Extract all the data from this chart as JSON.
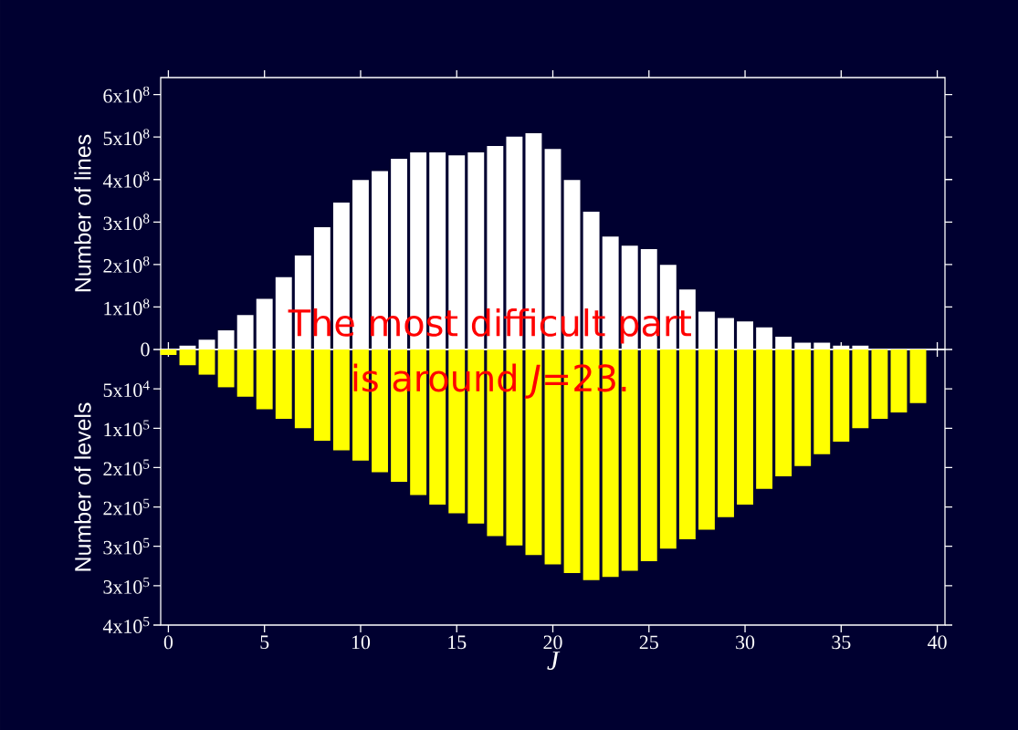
{
  "chart_data": [
    {
      "type": "bar",
      "ylabel": "Number of lines",
      "color": "#ffffff",
      "x": [
        0,
        1,
        2,
        3,
        4,
        5,
        6,
        7,
        8,
        9,
        10,
        11,
        12,
        13,
        14,
        15,
        16,
        17,
        18,
        19,
        20,
        21,
        22,
        23,
        24,
        25,
        26,
        27,
        28,
        29,
        30,
        31,
        32,
        33,
        34,
        35,
        36,
        37,
        38,
        39
      ],
      "values": [
        0,
        9000000.0,
        23000000.0,
        45000000.0,
        81000000.0,
        119000000.0,
        170000000.0,
        221000000.0,
        288000000.0,
        346000000.0,
        399000000.0,
        420000000.0,
        449000000.0,
        464000000.0,
        464000000.0,
        457000000.0,
        464000000.0,
        479000000.0,
        501000000.0,
        509000000.0,
        472000000.0,
        399000000.0,
        324000000.0,
        266000000.0,
        244000000.0,
        236000000.0,
        199000000.0,
        141000000.0,
        89000000.0,
        74000000.0,
        66000000.0,
        52000000.0,
        30000000.0,
        16000000.0,
        16000000.0,
        9000000.0,
        9000000.0,
        0,
        0,
        0
      ],
      "xlim": [
        -0.4,
        40.4
      ],
      "xticks": [
        0,
        5,
        10,
        15,
        20,
        25,
        30,
        35,
        40
      ],
      "ylim": [
        0,
        640000000.0
      ],
      "yticks": [
        0,
        {
          "value": 100000000.0,
          "label": "1x10$^{8}$"
        },
        {
          "value": 200000000.0,
          "label": "2x10$^{8}$"
        },
        {
          "value": 300000000.0,
          "label": "3x10$^{8}$"
        },
        {
          "value": 400000000.0,
          "label": "4x10$^{8}$"
        },
        {
          "value": 500000000.0,
          "label": "5x10$^{8}$"
        },
        {
          "value": 600000000.0,
          "label": "6x10$^{8}$"
        }
      ],
      "tick_labels": "y"
    },
    {
      "type": "bar",
      "ylabel": "Number of levels",
      "xlabel": "J",
      "color": "#ffff00",
      "x": [
        0,
        1,
        2,
        3,
        4,
        5,
        6,
        7,
        8,
        9,
        10,
        11,
        12,
        13,
        14,
        15,
        16,
        17,
        18,
        19,
        20,
        21,
        22,
        23,
        24,
        25,
        26,
        27,
        28,
        29,
        30,
        31,
        32,
        33,
        34,
        35,
        36,
        37,
        38,
        39
      ],
      "annotations": [
        "The most difficult part",
        "is around *J*=23."
      ],
      "values": [
        7000,
        20000,
        32000,
        48000,
        60000,
        76000,
        88000,
        100000,
        116000,
        128000,
        141000,
        156000,
        168000,
        185000,
        197000,
        208000,
        221000,
        237000,
        249000,
        261000,
        273000,
        284000,
        293000,
        289000,
        281000,
        269000,
        253000,
        241000,
        229000,
        213000,
        197000,
        177000,
        161000,
        148000,
        133000,
        117000,
        100000,
        88000,
        80000,
        68000
      ],
      "xlim": [
        -0.4,
        40.4
      ],
      "xticks": [
        0,
        5,
        10,
        15,
        20,
        25,
        30,
        35,
        40
      ],
      "ylim": [
        350000,
        0
      ],
      "yticks": [
        {
          "value": 50000,
          "label": "5x10$^{4}$"
        },
        {
          "value": 100000,
          "label": "1x10$^{5}$"
        },
        {
          "value": 150000,
          "label": "2x10$^{5}$"
        },
        {
          "value": 200000,
          "label": "2x10$^{5}$"
        },
        {
          "value": 250000,
          "label": "3x10$^{5}$"
        },
        {
          "value": 300000,
          "label": "3x10$^{5}$"
        },
        {
          "value": 350000,
          "label": "4x10$^{5}$"
        }
      ]
    }
  ]
}
